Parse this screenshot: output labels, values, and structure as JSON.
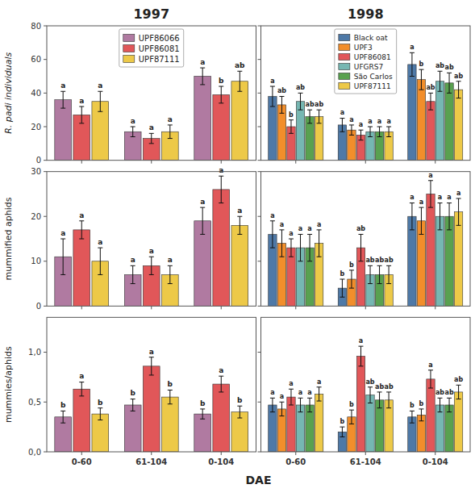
{
  "chart_data": [
    {
      "type": "bar",
      "title": "1997",
      "ylabel": "R. padi individuals",
      "categories": [
        "0-60",
        "61-104",
        "0-104"
      ],
      "series": [
        {
          "name": "UPF86066",
          "color": "#b07aa1",
          "values": [
            36,
            17,
            50
          ],
          "errors": [
            5,
            3,
            5
          ],
          "annotations": [
            "a",
            "a",
            "a"
          ]
        },
        {
          "name": "UPF86081",
          "color": "#e15759",
          "values": [
            27,
            13,
            39
          ],
          "errors": [
            5,
            3,
            5
          ],
          "annotations": [
            "a",
            "a",
            "b"
          ]
        },
        {
          "name": "UPF87111",
          "color": "#edc948",
          "values": [
            35,
            17,
            47
          ],
          "errors": [
            6,
            4,
            6
          ],
          "annotations": [
            "a",
            "a",
            "ab"
          ]
        }
      ],
      "ylim": [
        0,
        80
      ],
      "yticks": [
        0,
        20,
        40,
        60,
        80
      ],
      "grid": false,
      "legend": "top",
      "tick_labels": "y"
    },
    {
      "type": "bar",
      "title": "1998",
      "categories": [
        "0-60",
        "61-104",
        "0-104"
      ],
      "series": [
        {
          "name": "Black oat",
          "color": "#4e79a7",
          "values": [
            38,
            21,
            57
          ],
          "errors": [
            6,
            4,
            7
          ],
          "annotations": [
            "a",
            "a",
            "a"
          ]
        },
        {
          "name": "UPF3",
          "color": "#f28e2b",
          "values": [
            33,
            18,
            48
          ],
          "errors": [
            5,
            3,
            6
          ],
          "annotations": [
            "ab",
            "a",
            "b"
          ]
        },
        {
          "name": "UPF86081",
          "color": "#e15759",
          "values": [
            20,
            15,
            35
          ],
          "errors": [
            4,
            3,
            5
          ],
          "annotations": [
            "b",
            "a",
            "ab"
          ]
        },
        {
          "name": "UFGRS7",
          "color": "#76b7b2",
          "values": [
            35,
            17,
            47
          ],
          "errors": [
            5,
            3,
            6
          ],
          "annotations": [
            "ab",
            "a",
            "ab"
          ]
        },
        {
          "name": "São Carlos",
          "color": "#59a14f",
          "values": [
            26,
            17,
            46
          ],
          "errors": [
            4,
            3,
            6
          ],
          "annotations": [
            "ab",
            "a",
            "ab"
          ]
        },
        {
          "name": "UPF87111",
          "color": "#edc948",
          "values": [
            26,
            17,
            42
          ],
          "errors": [
            4,
            3,
            5
          ],
          "annotations": [
            "ab",
            "a",
            "ab"
          ]
        }
      ],
      "ylim": [
        0,
        80
      ],
      "yticks": [
        0,
        20,
        40,
        60,
        80
      ],
      "grid": false,
      "legend": "top",
      "tick_labels": false
    },
    {
      "type": "bar",
      "ylabel": "mummified aphids",
      "categories": [
        "0-60",
        "61-104",
        "0-104"
      ],
      "series": [
        {
          "color": "#b07aa1",
          "values": [
            11,
            7,
            19
          ],
          "errors": [
            4,
            2,
            3
          ],
          "annotations": [
            "a",
            "a",
            "a"
          ]
        },
        {
          "color": "#e15759",
          "values": [
            17,
            9,
            26
          ],
          "errors": [
            2,
            2,
            3
          ],
          "annotations": [
            "a",
            "a",
            "a"
          ]
        },
        {
          "color": "#edc948",
          "values": [
            10,
            7,
            18
          ],
          "errors": [
            3,
            2,
            2
          ],
          "annotations": [
            "a",
            "a",
            "a"
          ]
        }
      ],
      "ylim": [
        0,
        30
      ],
      "yticks": [
        0,
        10,
        20,
        30
      ],
      "grid": false,
      "tick_labels": "y"
    },
    {
      "type": "bar",
      "categories": [
        "0-60",
        "61-104",
        "0-104"
      ],
      "series": [
        {
          "color": "#4e79a7",
          "values": [
            16,
            4,
            20
          ],
          "errors": [
            3,
            2,
            3
          ],
          "annotations": [
            "a",
            "b",
            "a"
          ]
        },
        {
          "color": "#f28e2b",
          "values": [
            14,
            6,
            19
          ],
          "errors": [
            3,
            2,
            3
          ],
          "annotations": [
            "a",
            "b",
            "a"
          ]
        },
        {
          "color": "#e15759",
          "values": [
            13,
            13,
            25
          ],
          "errors": [
            2,
            3,
            3
          ],
          "annotations": [
            "a",
            "ab",
            "a"
          ]
        },
        {
          "color": "#76b7b2",
          "values": [
            13,
            7,
            20
          ],
          "errors": [
            3,
            2,
            3
          ],
          "annotations": [
            "a",
            "ab",
            "a"
          ]
        },
        {
          "color": "#59a14f",
          "values": [
            13,
            7,
            20
          ],
          "errors": [
            3,
            2,
            3
          ],
          "annotations": [
            "a",
            "ab",
            "a"
          ]
        },
        {
          "color": "#edc948",
          "values": [
            14,
            7,
            21
          ],
          "errors": [
            3,
            2,
            3
          ],
          "annotations": [
            "a",
            "ab",
            "a"
          ]
        }
      ],
      "ylim": [
        0,
        30
      ],
      "yticks": [
        0,
        10,
        20,
        30
      ],
      "grid": false,
      "tick_labels": false
    },
    {
      "type": "bar",
      "ylabel": "mummies/aphids",
      "xlabel": "DAE",
      "categories": [
        "0-60",
        "61-104",
        "0-104"
      ],
      "series": [
        {
          "color": "#b07aa1",
          "values": [
            0.35,
            0.47,
            0.38
          ],
          "errors": [
            0.06,
            0.06,
            0.05
          ],
          "annotations": [
            "b",
            "b",
            "b"
          ]
        },
        {
          "color": "#e15759",
          "values": [
            0.63,
            0.86,
            0.68
          ],
          "errors": [
            0.07,
            0.09,
            0.08
          ],
          "annotations": [
            "a",
            "a",
            "a"
          ]
        },
        {
          "color": "#edc948",
          "values": [
            0.38,
            0.55,
            0.4
          ],
          "errors": [
            0.06,
            0.07,
            0.06
          ],
          "annotations": [
            "b",
            "b",
            "b"
          ]
        }
      ],
      "ylim": [
        0.0,
        1.35
      ],
      "yticks": [
        {
          "value": 0.0,
          "label": "0,0"
        },
        {
          "value": 0.5,
          "label": "0,5"
        },
        {
          "value": 1.0,
          "label": "1,0"
        }
      ],
      "grid": false
    },
    {
      "type": "bar",
      "categories": [
        "0-60",
        "61-104",
        "0-104"
      ],
      "series": [
        {
          "color": "#4e79a7",
          "values": [
            0.47,
            0.2,
            0.35
          ],
          "errors": [
            0.07,
            0.05,
            0.06
          ],
          "annotations": [
            "a",
            "b",
            "b"
          ]
        },
        {
          "color": "#f28e2b",
          "values": [
            0.43,
            0.35,
            0.37
          ],
          "errors": [
            0.07,
            0.07,
            0.06
          ],
          "annotations": [
            "a",
            "b",
            "b"
          ]
        },
        {
          "color": "#e15759",
          "values": [
            0.55,
            0.96,
            0.73
          ],
          "errors": [
            0.08,
            0.1,
            0.09
          ],
          "annotations": [
            "a",
            "a",
            "a"
          ]
        },
        {
          "color": "#76b7b2",
          "values": [
            0.47,
            0.57,
            0.47
          ],
          "errors": [
            0.07,
            0.08,
            0.07
          ],
          "annotations": [
            "a",
            "ab",
            "ab"
          ]
        },
        {
          "color": "#59a14f",
          "values": [
            0.47,
            0.52,
            0.47
          ],
          "errors": [
            0.07,
            0.08,
            0.07
          ],
          "annotations": [
            "a",
            "ab",
            "ab"
          ]
        },
        {
          "color": "#edc948",
          "values": [
            0.58,
            0.52,
            0.6
          ],
          "errors": [
            0.07,
            0.08,
            0.07
          ],
          "annotations": [
            "a",
            "ab",
            "ab"
          ]
        }
      ],
      "ylim": [
        0.0,
        1.35
      ],
      "yticks": [
        {
          "value": 0.0,
          "label": "0,0"
        },
        {
          "value": 0.5,
          "label": "0,5"
        },
        {
          "value": 1.0,
          "label": "1,0"
        }
      ],
      "grid": false,
      "tick_labels": "x"
    }
  ]
}
